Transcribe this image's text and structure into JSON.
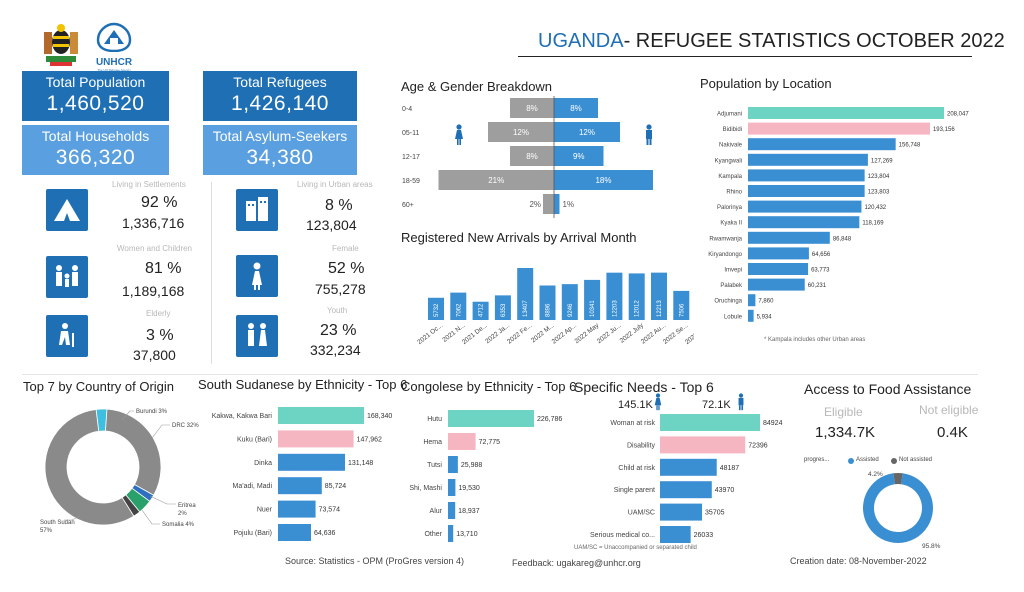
{
  "header": {
    "title_prefix": "UGANDA",
    "title_rest": "- REFUGEE STATISTICS OCTOBER 2022",
    "logo_unhcr": "UNHCR",
    "logo_unhcr_sub": "The UN Refugee Agency"
  },
  "kpis": {
    "total_population": {
      "label": "Total Population",
      "value": "1,460,520"
    },
    "total_refugees": {
      "label": "Total Refugees",
      "value": "1,426,140"
    },
    "total_households": {
      "label": "Total Households",
      "value": "366,320"
    },
    "total_asylum": {
      "label": "Total Asylum-Seekers",
      "value": "34,380"
    }
  },
  "stats": {
    "settlements": {
      "label": "Living in Settlements",
      "pct": "92 %",
      "num": "1,336,716",
      "icon": "tent-icon"
    },
    "urban": {
      "label": "Living in Urban areas",
      "pct": "8 %",
      "num": "123,804",
      "icon": "buildings-icon"
    },
    "women_children": {
      "label": "Women and Children",
      "pct": "81 %",
      "num": "1,189,168",
      "icon": "family-icon"
    },
    "female": {
      "label": "Female",
      "pct": "52 %",
      "num": "755,278",
      "icon": "female-icon"
    },
    "elderly": {
      "label": "Elderly",
      "pct": "3 %",
      "num": "37,800",
      "icon": "elderly-icon"
    },
    "youth": {
      "label": "Youth",
      "pct": "23 %",
      "num": "332,234",
      "icon": "youth-icon"
    }
  },
  "colors": {
    "dark_blue": "#1f6fb4",
    "light_blue": "#5a9fe0",
    "teal": "#6dd3c3",
    "pink": "#f6b6c1",
    "bar_blue": "#3a8fd3",
    "grey": "#9e9e9e"
  },
  "age_gender": {
    "title": "Age & Gender Breakdown",
    "type": "bar",
    "categories": [
      "0-4",
      "05-11",
      "12-17",
      "18-59",
      "60+"
    ],
    "female_pct": [
      8,
      12,
      8,
      21,
      2
    ],
    "male_pct": [
      8,
      12,
      9,
      18,
      1
    ],
    "female_labels": [
      "8%",
      "12%",
      "8%",
      "21%",
      "2%"
    ],
    "male_labels": [
      "8%",
      "12%",
      "9%",
      "18%",
      "1%"
    ]
  },
  "arrivals": {
    "title": "Registered New Arrivals by Arrival Month",
    "type": "bar",
    "categories": [
      "2021 Oc...",
      "2021 N...",
      "2021 De...",
      "2022 Ja...",
      "2022 Fe...",
      "2022 M...",
      "2022 Ap...",
      "2022 May",
      "2022 Ju...",
      "2022 July",
      "2022 Au...",
      "2022 Se...",
      "2022 Oc..."
    ],
    "values": [
      5732,
      7062,
      4712,
      6353,
      13407,
      8896,
      9246,
      10341,
      12203,
      12012,
      12213,
      7506,
      5562
    ]
  },
  "location": {
    "title": "Population by Location",
    "type": "bar",
    "categories": [
      "Adjumani",
      "Bidibidi",
      "Nakivale",
      "Kyangwali",
      "Kampala",
      "Rhino",
      "Palorinya",
      "Kyaka II",
      "Rwamwanja",
      "Kiryandongo",
      "Imvepi",
      "Palabek",
      "Oruchinga",
      "Lobule"
    ],
    "values": [
      208047,
      193156,
      156748,
      127269,
      123804,
      123803,
      120432,
      118169,
      86848,
      64656,
      63773,
      60231,
      7860,
      5934
    ],
    "labels": [
      "208,047",
      "193,156",
      "156,748",
      "127,269",
      "123,804",
      "123,803",
      "120,432",
      "118,169",
      "86,848",
      "64,656",
      "63,773",
      "60,231",
      "7,860",
      "5,934"
    ],
    "footnote": "* Kampala includes other Urban areas"
  },
  "origin": {
    "title": "Top 7 by Country of Origin",
    "type": "pie",
    "slices": [
      {
        "name": "South Sudan",
        "value": 57,
        "label": "South Sudan 57%"
      },
      {
        "name": "DRC",
        "value": 32,
        "label": "DRC 32%"
      },
      {
        "name": "Burundi",
        "value": 3,
        "label": "Burundi 3%"
      },
      {
        "name": "Eritrea",
        "value": 2,
        "label": "Eritrea 2%"
      },
      {
        "name": "Somalia",
        "value": 4,
        "label": "Somalia 4%"
      },
      {
        "name": "Other",
        "value": 2,
        "label": ""
      }
    ]
  },
  "south_sudanese": {
    "title": "South Sudanese by Ethnicity - Top 6",
    "type": "bar",
    "categories": [
      "Kakwa, Kakwa Bari",
      "Kuku (Bari)",
      "Dinka",
      "Ma'adi, Madi",
      "Nuer",
      "Pojulu (Bari)"
    ],
    "values": [
      168340,
      147962,
      131148,
      85724,
      73574,
      64636
    ],
    "labels": [
      "168,340",
      "147,962",
      "131,148",
      "85,724",
      "73,574",
      "64,636"
    ]
  },
  "congolese": {
    "title": "Congolese by Ethnicity - Top 6",
    "type": "bar",
    "categories": [
      "Hutu",
      "Hema",
      "Tutsi",
      "Shi, Mashi",
      "Alur",
      "Other"
    ],
    "values": [
      226786,
      72775,
      25988,
      19530,
      18937,
      13710
    ],
    "labels": [
      "226,786",
      "72,775",
      "25,988",
      "19,530",
      "18,937",
      "13,710"
    ]
  },
  "specific_needs": {
    "title": "Specific Needs - Top 6",
    "female_total": "145.1K",
    "male_total": "72.1K",
    "type": "bar",
    "categories": [
      "Woman at risk",
      "Disability",
      "Child at risk",
      "Single parent",
      "UAM/SC",
      "Serious medical co..."
    ],
    "values": [
      84924,
      72396,
      48187,
      43970,
      35705,
      26033
    ],
    "labels": [
      "84924",
      "72396",
      "48187",
      "43970",
      "35705",
      "26033"
    ],
    "footnote": "UAM/SC = Unaccompanied or separated child"
  },
  "food": {
    "title": "Access to Food Assistance",
    "eligible_label": "Eligible",
    "eligible_value": "1,334.7K",
    "not_eligible_label": "Not eligible",
    "not_eligible_value": "0.4K",
    "legend_title": "progres...",
    "legend": [
      "Assisted",
      "Not assisted"
    ],
    "type": "pie",
    "slices": [
      {
        "name": "Assisted",
        "value": 95.8,
        "label": "95.8%"
      },
      {
        "name": "Not assisted",
        "value": 4.2,
        "label": "4.2%"
      }
    ]
  },
  "footer": {
    "source": "Source: Statistics - OPM (ProGres version 4)",
    "feedback": "Feedback: ugakareg@unhcr.org",
    "creation": "Creation date: 08-November-2022"
  }
}
